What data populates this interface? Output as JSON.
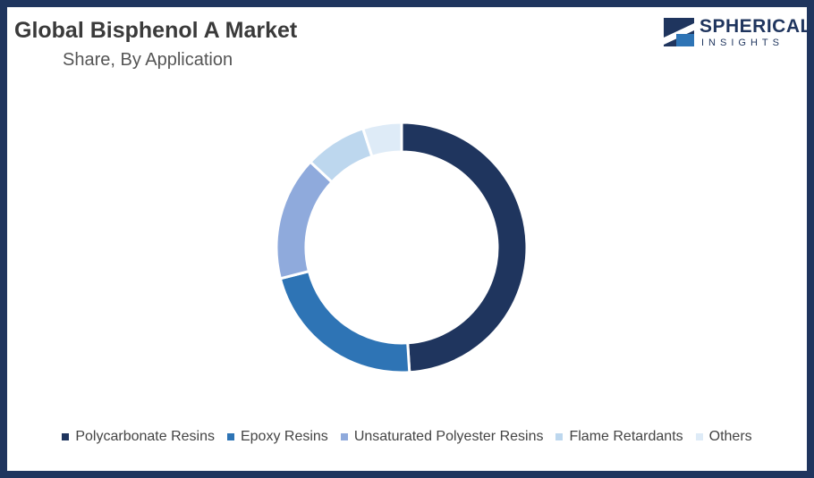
{
  "logo": {
    "name": "SPHERICAL",
    "tagline": "INSIGHTS"
  },
  "chart_data": {
    "type": "donut",
    "title": "Global Bisphenol A Market",
    "subtitle": "Share, By Application",
    "categories": [
      "Polycarbonate Resins",
      "Epoxy Resins",
      "Unsaturated Polyester Resins",
      "Flame Retardants",
      "Others"
    ],
    "values": [
      49,
      22,
      16,
      8,
      5
    ],
    "colors": [
      "#1f355e",
      "#2e74b5",
      "#8faadc",
      "#bdd7ee",
      "#deebf7"
    ],
    "legend": "bottom"
  }
}
